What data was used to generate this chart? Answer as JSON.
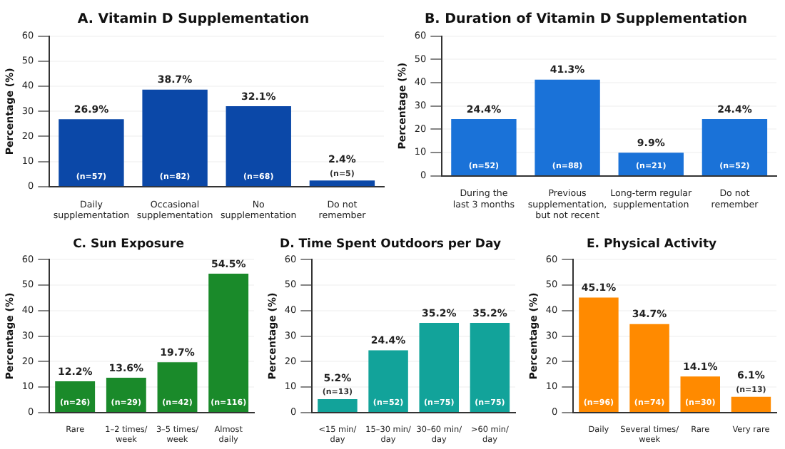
{
  "chart_data": [
    {
      "type": "bar",
      "title": "A. Vitamin D Supplementation",
      "ylabel": "Percentage (%)",
      "categories": [
        "Daily\nsupplementation",
        "Occasional\nsupplementation",
        "No\nsupplementation",
        "Do not\nremember"
      ],
      "values": [
        26.9,
        38.7,
        32.1,
        2.4
      ],
      "value_labels": [
        "26.9%",
        "38.7%",
        "32.1%",
        "2.4%"
      ],
      "color": "#0b48a8",
      "ylim": [
        0,
        60
      ],
      "yticks": [
        0,
        10,
        20,
        30,
        40,
        50,
        60
      ],
      "grid": "y",
      "legend": false,
      "annotations": [
        {
          "text": "(n=57)",
          "x": "Daily\nsupplementation",
          "y": 0
        },
        {
          "text": "(n=82)",
          "x": "Occasional\nsupplementation",
          "y": 0
        },
        {
          "text": "(n=68)",
          "x": "No\nsupplementation",
          "y": 0
        },
        {
          "text": "(n=5)",
          "x": "Do not\nremember",
          "y": 0
        }
      ]
    },
    {
      "type": "bar",
      "title": "B. Duration of Vitamin D Supplementation",
      "ylabel": "Percentage (%)",
      "categories": [
        "During the\nlast 3 months",
        "Previous\nsupplementation,\nbut not recent",
        "Long-term regular\nsupplementation",
        "Do not\nremember"
      ],
      "values": [
        24.4,
        41.3,
        9.9,
        24.4
      ],
      "value_labels": [
        "24.4%",
        "41.3%",
        "9.9%",
        "24.4%"
      ],
      "color": "#1a72d8",
      "ylim": [
        0,
        60
      ],
      "yticks": [
        0,
        10,
        20,
        30,
        40,
        50,
        60
      ],
      "grid": "y",
      "legend": false,
      "annotations": [
        {
          "text": "(n=52)",
          "x": "During the\nlast 3 months",
          "y": 0
        },
        {
          "text": "(n=88)",
          "x": "Previous\nsupplementation,\nbut not recent",
          "y": 0
        },
        {
          "text": "(n=21)",
          "x": "Long-term regular\nsupplementation",
          "y": 0
        },
        {
          "text": "(n=52)",
          "x": "Do not\nremember",
          "y": 0
        }
      ]
    },
    {
      "type": "bar",
      "title": "C. Sun Exposure",
      "ylabel": "Percentage (%)",
      "categories": [
        "Rare",
        "1–2 times/\nweek",
        "3–5 times/\nweek",
        "Almost\ndaily"
      ],
      "values": [
        12.2,
        13.6,
        19.7,
        54.5
      ],
      "value_labels": [
        "12.2%",
        "13.6%",
        "19.7%",
        "54.5%"
      ],
      "color": "#1a8a2a",
      "ylim": [
        0,
        60
      ],
      "yticks": [
        0,
        10,
        20,
        30,
        40,
        50,
        60
      ],
      "grid": "y",
      "legend": false,
      "annotations": [
        {
          "text": "(n=26)",
          "x": "Rare",
          "y": 0
        },
        {
          "text": "(n=29)",
          "x": "1–2 times/\nweek",
          "y": 0
        },
        {
          "text": "(n=42)",
          "x": "3–5 times/\nweek",
          "y": 0
        },
        {
          "text": "(n=116)",
          "x": "Almost\ndaily",
          "y": 0
        }
      ]
    },
    {
      "type": "bar",
      "title": "D. Time Spent Outdoors per Day",
      "ylabel": "Percentage (%)",
      "categories": [
        "<15 min/\nday",
        "15–30 min/\nday",
        "30–60 min/\nday",
        ">60 min/\nday"
      ],
      "values": [
        5.2,
        24.4,
        35.2,
        35.2
      ],
      "value_labels": [
        "5.2%",
        "24.4%",
        "35.2%",
        "35.2%"
      ],
      "color": "#12a39a",
      "ylim": [
        0,
        60
      ],
      "yticks": [
        0,
        10,
        20,
        30,
        40,
        50,
        60
      ],
      "grid": "y",
      "legend": false,
      "annotations": [
        {
          "text": "(n=13)",
          "x": "<15 min/\nday",
          "y": 0
        },
        {
          "text": "(n=52)",
          "x": "15–30 min/\nday",
          "y": 0
        },
        {
          "text": "(n=75)",
          "x": "30–60 min/\nday",
          "y": 0
        },
        {
          "text": "(n=75)",
          "x": ">60 min/\nday",
          "y": 0
        }
      ]
    },
    {
      "type": "bar",
      "title": "E. Physical Activity",
      "ylabel": "Percentage (%)",
      "categories": [
        "Daily",
        "Several times/\nweek",
        "Rare",
        "Very rare"
      ],
      "values": [
        45.1,
        34.7,
        14.1,
        6.1
      ],
      "value_labels": [
        "45.1%",
        "34.7%",
        "14.1%",
        "6.1%"
      ],
      "color": "#ff8a00",
      "ylim": [
        0,
        60
      ],
      "yticks": [
        0,
        10,
        20,
        30,
        40,
        50,
        60
      ],
      "grid": "y",
      "legend": false,
      "annotations": [
        {
          "text": "(n=96)",
          "x": "Daily",
          "y": 0
        },
        {
          "text": "(n=74)",
          "x": "Several times/\nweek",
          "y": 0
        },
        {
          "text": "(n=30)",
          "x": "Rare",
          "y": 0
        },
        {
          "text": "(n=13)",
          "x": "Very rare",
          "y": 0
        }
      ]
    }
  ]
}
